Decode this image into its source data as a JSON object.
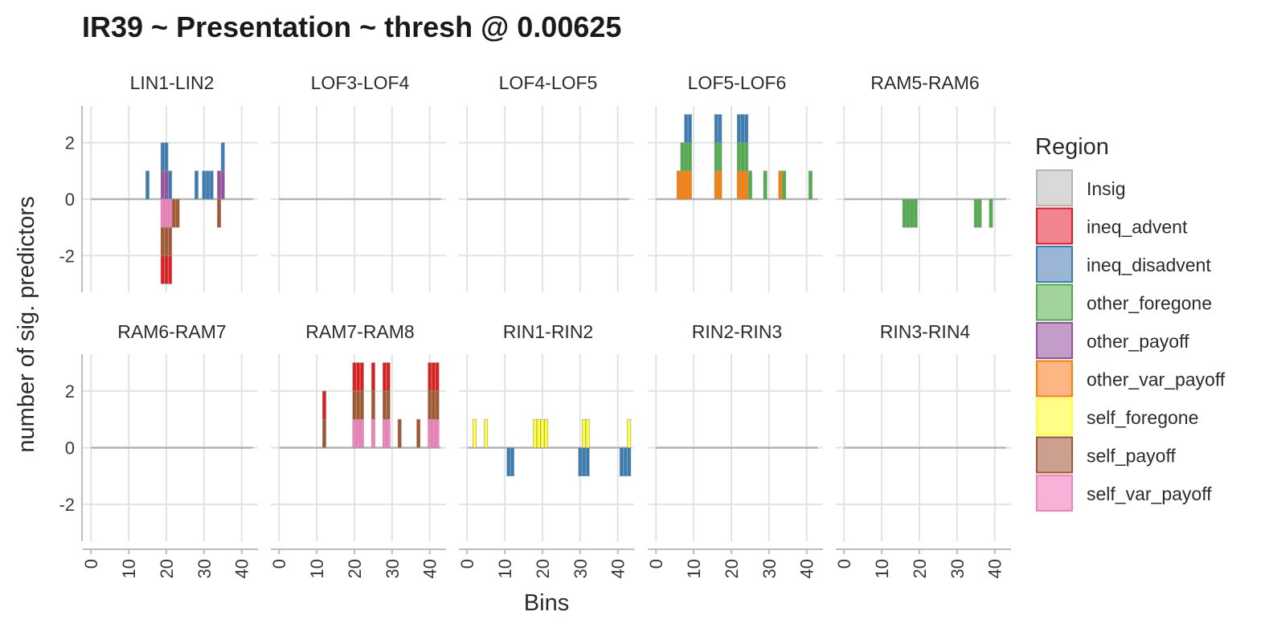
{
  "chart_data": {
    "type": "bar",
    "title": "IR39 ~ Presentation ~ thresh @ 0.00625",
    "xlabel": "Bins",
    "ylabel": "number of sig. predictors",
    "xlim": [
      0,
      43
    ],
    "ylim": [
      -3,
      3
    ],
    "x_ticks": [
      0,
      10,
      20,
      30,
      40
    ],
    "y_ticks": [
      -2,
      0,
      2
    ],
    "legend": {
      "title": "Region",
      "position": "right",
      "entries": [
        {
          "name": "Insig",
          "fill": "#d9d9d9",
          "stroke": "#b3b3b3"
        },
        {
          "name": "ineq_advent",
          "fill": "#f08490",
          "stroke": "#e41a1c"
        },
        {
          "name": "ineq_disadvent",
          "fill": "#9ab6d4",
          "stroke": "#377eb8"
        },
        {
          "name": "other_foregone",
          "fill": "#a2d39c",
          "stroke": "#4daf4a"
        },
        {
          "name": "other_payoff",
          "fill": "#c39cc9",
          "stroke": "#984ea3"
        },
        {
          "name": "other_var_payoff",
          "fill": "#fdb584",
          "stroke": "#ff7f00"
        },
        {
          "name": "self_foregone",
          "fill": "#ffff8a",
          "stroke": "#ffff33"
        },
        {
          "name": "self_payoff",
          "fill": "#cba08e",
          "stroke": "#a65628"
        },
        {
          "name": "self_var_payoff",
          "fill": "#f8b2d8",
          "stroke": "#f781bf"
        }
      ]
    },
    "bar_colors": {
      "ineq_advent": "#e41a1c",
      "ineq_disadvent": "#377eb8",
      "other_foregone": "#4daf4a",
      "other_payoff": "#984ea3",
      "other_var_payoff": "#ff7f00",
      "self_foregone": "#ffff33",
      "self_payoff": "#a65628",
      "self_var_payoff": "#f781bf",
      "Insig": "#b3b3b3"
    },
    "panels": [
      {
        "name": "LIN1-LIN2",
        "bars": [
          {
            "x": 15,
            "pos": [
              "ineq_disadvent"
            ],
            "neg": []
          },
          {
            "x": 19,
            "pos": [
              "other_payoff",
              "ineq_disadvent"
            ],
            "neg": [
              "self_var_payoff",
              "self_payoff",
              "ineq_advent"
            ]
          },
          {
            "x": 20,
            "pos": [
              "other_payoff",
              "ineq_disadvent"
            ],
            "neg": [
              "self_var_payoff",
              "self_payoff",
              "ineq_advent"
            ]
          },
          {
            "x": 21,
            "pos": [
              "ineq_disadvent"
            ],
            "neg": [
              "self_var_payoff",
              "self_payoff",
              "ineq_advent"
            ]
          },
          {
            "x": 22,
            "pos": [],
            "neg": [
              "self_payoff"
            ]
          },
          {
            "x": 23,
            "pos": [],
            "neg": [
              "self_payoff"
            ]
          },
          {
            "x": 28,
            "pos": [
              "ineq_disadvent"
            ],
            "neg": []
          },
          {
            "x": 30,
            "pos": [
              "ineq_disadvent"
            ],
            "neg": []
          },
          {
            "x": 31,
            "pos": [
              "ineq_disadvent"
            ],
            "neg": []
          },
          {
            "x": 32,
            "pos": [
              "ineq_disadvent"
            ],
            "neg": []
          },
          {
            "x": 34,
            "pos": [
              "other_payoff"
            ],
            "neg": [
              "self_payoff"
            ]
          },
          {
            "x": 35,
            "pos": [
              "other_payoff",
              "ineq_disadvent"
            ],
            "neg": []
          }
        ]
      },
      {
        "name": "LOF3-LOF4",
        "bars": []
      },
      {
        "name": "LOF4-LOF5",
        "bars": []
      },
      {
        "name": "LOF5-LOF6",
        "bars": [
          {
            "x": 6,
            "pos": [
              "other_var_payoff"
            ],
            "neg": []
          },
          {
            "x": 7,
            "pos": [
              "other_var_payoff",
              "other_foregone"
            ],
            "neg": []
          },
          {
            "x": 8,
            "pos": [
              "other_var_payoff",
              "other_foregone",
              "ineq_disadvent"
            ],
            "neg": []
          },
          {
            "x": 9,
            "pos": [
              "other_var_payoff",
              "other_foregone",
              "ineq_disadvent"
            ],
            "neg": []
          },
          {
            "x": 16,
            "pos": [
              "other_var_payoff",
              "other_foregone",
              "ineq_disadvent"
            ],
            "neg": []
          },
          {
            "x": 17,
            "pos": [
              "other_var_payoff",
              "other_foregone",
              "ineq_disadvent"
            ],
            "neg": []
          },
          {
            "x": 22,
            "pos": [
              "other_var_payoff",
              "other_foregone",
              "ineq_disadvent"
            ],
            "neg": []
          },
          {
            "x": 23,
            "pos": [
              "other_var_payoff",
              "other_foregone",
              "ineq_disadvent"
            ],
            "neg": []
          },
          {
            "x": 24,
            "pos": [
              "other_var_payoff",
              "other_foregone",
              "ineq_disadvent"
            ],
            "neg": []
          },
          {
            "x": 25,
            "pos": [
              "other_foregone"
            ],
            "neg": []
          },
          {
            "x": 29,
            "pos": [
              "other_foregone"
            ],
            "neg": []
          },
          {
            "x": 33,
            "pos": [
              "other_var_payoff"
            ],
            "neg": []
          },
          {
            "x": 34,
            "pos": [
              "other_foregone"
            ],
            "neg": []
          },
          {
            "x": 41,
            "pos": [
              "other_foregone"
            ],
            "neg": []
          }
        ]
      },
      {
        "name": "RAM5-RAM6",
        "bars": [
          {
            "x": 16,
            "pos": [],
            "neg": [
              "other_foregone"
            ]
          },
          {
            "x": 17,
            "pos": [],
            "neg": [
              "other_foregone"
            ]
          },
          {
            "x": 18,
            "pos": [],
            "neg": [
              "other_foregone"
            ]
          },
          {
            "x": 19,
            "pos": [],
            "neg": [
              "other_foregone"
            ]
          },
          {
            "x": 35,
            "pos": [],
            "neg": [
              "other_foregone"
            ]
          },
          {
            "x": 36,
            "pos": [],
            "neg": [
              "other_foregone"
            ]
          },
          {
            "x": 39,
            "pos": [],
            "neg": [
              "other_foregone"
            ]
          }
        ]
      },
      {
        "name": "RAM6-RAM7",
        "bars": []
      },
      {
        "name": "RAM7-RAM8",
        "bars": [
          {
            "x": 12,
            "pos": [
              "self_payoff",
              "ineq_advent"
            ],
            "neg": []
          },
          {
            "x": 20,
            "pos": [
              "self_var_payoff",
              "self_payoff",
              "ineq_advent"
            ],
            "neg": []
          },
          {
            "x": 21,
            "pos": [
              "self_var_payoff",
              "self_payoff",
              "ineq_advent"
            ],
            "neg": []
          },
          {
            "x": 22,
            "pos": [
              "self_var_payoff",
              "self_payoff",
              "ineq_advent"
            ],
            "neg": []
          },
          {
            "x": 25,
            "pos": [
              "self_var_payoff",
              "self_payoff",
              "ineq_advent"
            ],
            "neg": []
          },
          {
            "x": 28,
            "pos": [
              "self_var_payoff",
              "self_payoff",
              "ineq_advent"
            ],
            "neg": []
          },
          {
            "x": 29,
            "pos": [
              "self_var_payoff",
              "self_payoff",
              "ineq_advent"
            ],
            "neg": []
          },
          {
            "x": 32,
            "pos": [
              "self_payoff"
            ],
            "neg": []
          },
          {
            "x": 37,
            "pos": [
              "self_payoff"
            ],
            "neg": []
          },
          {
            "x": 40,
            "pos": [
              "self_var_payoff",
              "self_payoff",
              "ineq_advent"
            ],
            "neg": []
          },
          {
            "x": 41,
            "pos": [
              "self_var_payoff",
              "self_payoff",
              "ineq_advent"
            ],
            "neg": []
          },
          {
            "x": 42,
            "pos": [
              "self_var_payoff",
              "self_payoff",
              "ineq_advent"
            ],
            "neg": []
          }
        ]
      },
      {
        "name": "RIN1-RIN2",
        "bars": [
          {
            "x": 2,
            "pos": [
              "self_foregone"
            ],
            "neg": []
          },
          {
            "x": 5,
            "pos": [
              "self_foregone"
            ],
            "neg": []
          },
          {
            "x": 11,
            "pos": [],
            "neg": [
              "ineq_disadvent"
            ]
          },
          {
            "x": 12,
            "pos": [],
            "neg": [
              "ineq_disadvent"
            ]
          },
          {
            "x": 18,
            "pos": [
              "self_foregone"
            ],
            "neg": []
          },
          {
            "x": 19,
            "pos": [
              "self_foregone"
            ],
            "neg": []
          },
          {
            "x": 20,
            "pos": [
              "self_foregone"
            ],
            "neg": []
          },
          {
            "x": 21,
            "pos": [
              "self_foregone"
            ],
            "neg": []
          },
          {
            "x": 30,
            "pos": [],
            "neg": [
              "ineq_disadvent"
            ]
          },
          {
            "x": 31,
            "pos": [
              "self_foregone"
            ],
            "neg": [
              "ineq_disadvent"
            ]
          },
          {
            "x": 32,
            "pos": [
              "self_foregone"
            ],
            "neg": [
              "ineq_disadvent"
            ]
          },
          {
            "x": 41,
            "pos": [],
            "neg": [
              "ineq_disadvent"
            ]
          },
          {
            "x": 42,
            "pos": [],
            "neg": [
              "ineq_disadvent"
            ]
          },
          {
            "x": 43,
            "pos": [
              "self_foregone"
            ],
            "neg": [
              "ineq_disadvent"
            ]
          }
        ]
      },
      {
        "name": "RIN2-RIN3",
        "bars": []
      },
      {
        "name": "RIN3-RIN4",
        "bars": []
      }
    ]
  }
}
